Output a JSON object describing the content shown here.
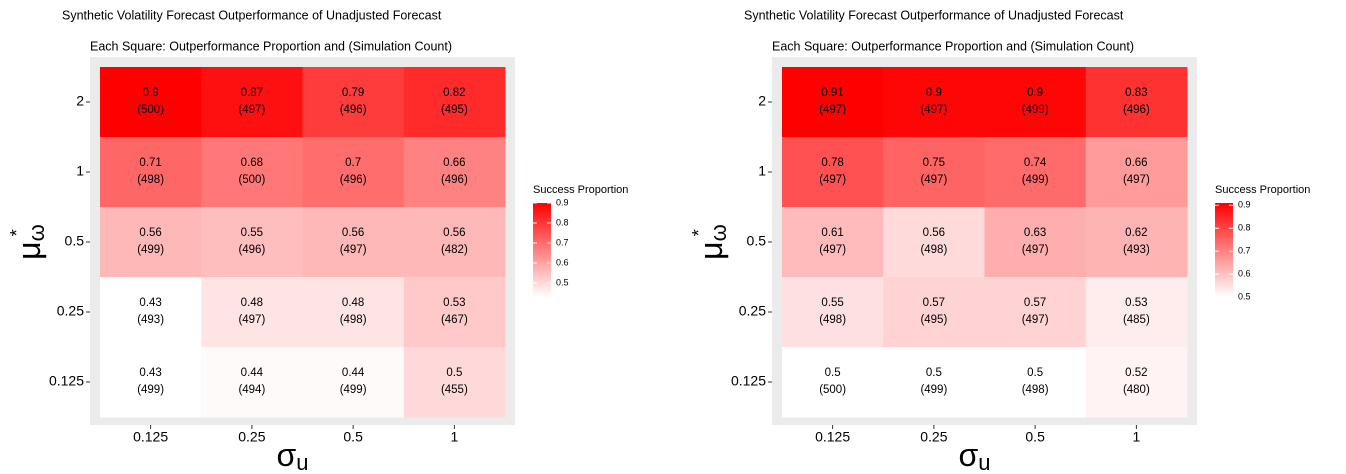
{
  "chart_data": [
    {
      "type": "heatmap",
      "title": "Synthetic Volatility Forecast Outperformance of Unadjusted Forecast",
      "subtitle": "Each Square: Outperformance Proportion and (Simulation Count)",
      "x_label": "σ",
      "x_label_sub": "u",
      "y_label": "μ",
      "y_label_sub": "ω",
      "y_label_sup": "*",
      "x_categories": [
        "0.125",
        "0.25",
        "0.5",
        "1"
      ],
      "y_categories": [
        "2",
        "1",
        "0.5",
        "0.25",
        "0.125"
      ],
      "values": [
        [
          0.9,
          0.87,
          0.79,
          0.82
        ],
        [
          0.71,
          0.68,
          0.7,
          0.66
        ],
        [
          0.56,
          0.55,
          0.56,
          0.56
        ],
        [
          0.43,
          0.48,
          0.48,
          0.53
        ],
        [
          0.43,
          0.44,
          0.44,
          0.5
        ]
      ],
      "cell_labels": [
        [
          "(500)",
          "(497)",
          "(496)",
          "(495)"
        ],
        [
          "(498)",
          "(500)",
          "(496)",
          "(496)"
        ],
        [
          "(499)",
          "(496)",
          "(497)",
          "(482)"
        ],
        [
          "(493)",
          "(497)",
          "(498)",
          "(467)"
        ],
        [
          "(499)",
          "(494)",
          "(499)",
          "(455)"
        ]
      ],
      "legend_title": "Success Proportion",
      "color_lim": [
        0.43,
        0.9
      ],
      "color_ticks": [
        0.5,
        0.6,
        0.7,
        0.8,
        0.9
      ],
      "low_color": "#ffffff",
      "high_color": "#ff0000"
    },
    {
      "type": "heatmap",
      "title": "Synthetic Volatility Forecast Outperformance of Unadjusted Forecast",
      "subtitle": "Each Square: Outperformance Proportion and (Simulation Count)",
      "x_label": "σ",
      "x_label_sub": "u",
      "y_label": "μ",
      "y_label_sub": "ω",
      "y_label_sup": "*",
      "x_categories": [
        "0.125",
        "0.25",
        "0.5",
        "1"
      ],
      "y_categories": [
        "2",
        "1",
        "0.5",
        "0.25",
        "0.125"
      ],
      "values": [
        [
          0.91,
          0.9,
          0.9,
          0.83
        ],
        [
          0.78,
          0.75,
          0.74,
          0.66
        ],
        [
          0.61,
          0.56,
          0.63,
          0.62
        ],
        [
          0.55,
          0.57,
          0.57,
          0.53
        ],
        [
          0.5,
          0.5,
          0.5,
          0.52
        ]
      ],
      "cell_labels": [
        [
          "(497)",
          "(497)",
          "(499)",
          "(496)"
        ],
        [
          "(497)",
          "(497)",
          "(499)",
          "(497)"
        ],
        [
          "(497)",
          "(498)",
          "(497)",
          "(493)"
        ],
        [
          "(498)",
          "(495)",
          "(497)",
          "(485)"
        ],
        [
          "(500)",
          "(499)",
          "(498)",
          "(480)"
        ]
      ],
      "legend_title": "Success Proportion",
      "color_lim": [
        0.5,
        0.91
      ],
      "color_ticks": [
        0.5,
        0.6,
        0.7,
        0.8,
        0.9
      ],
      "low_color": "#ffffff",
      "high_color": "#ff0000"
    }
  ]
}
